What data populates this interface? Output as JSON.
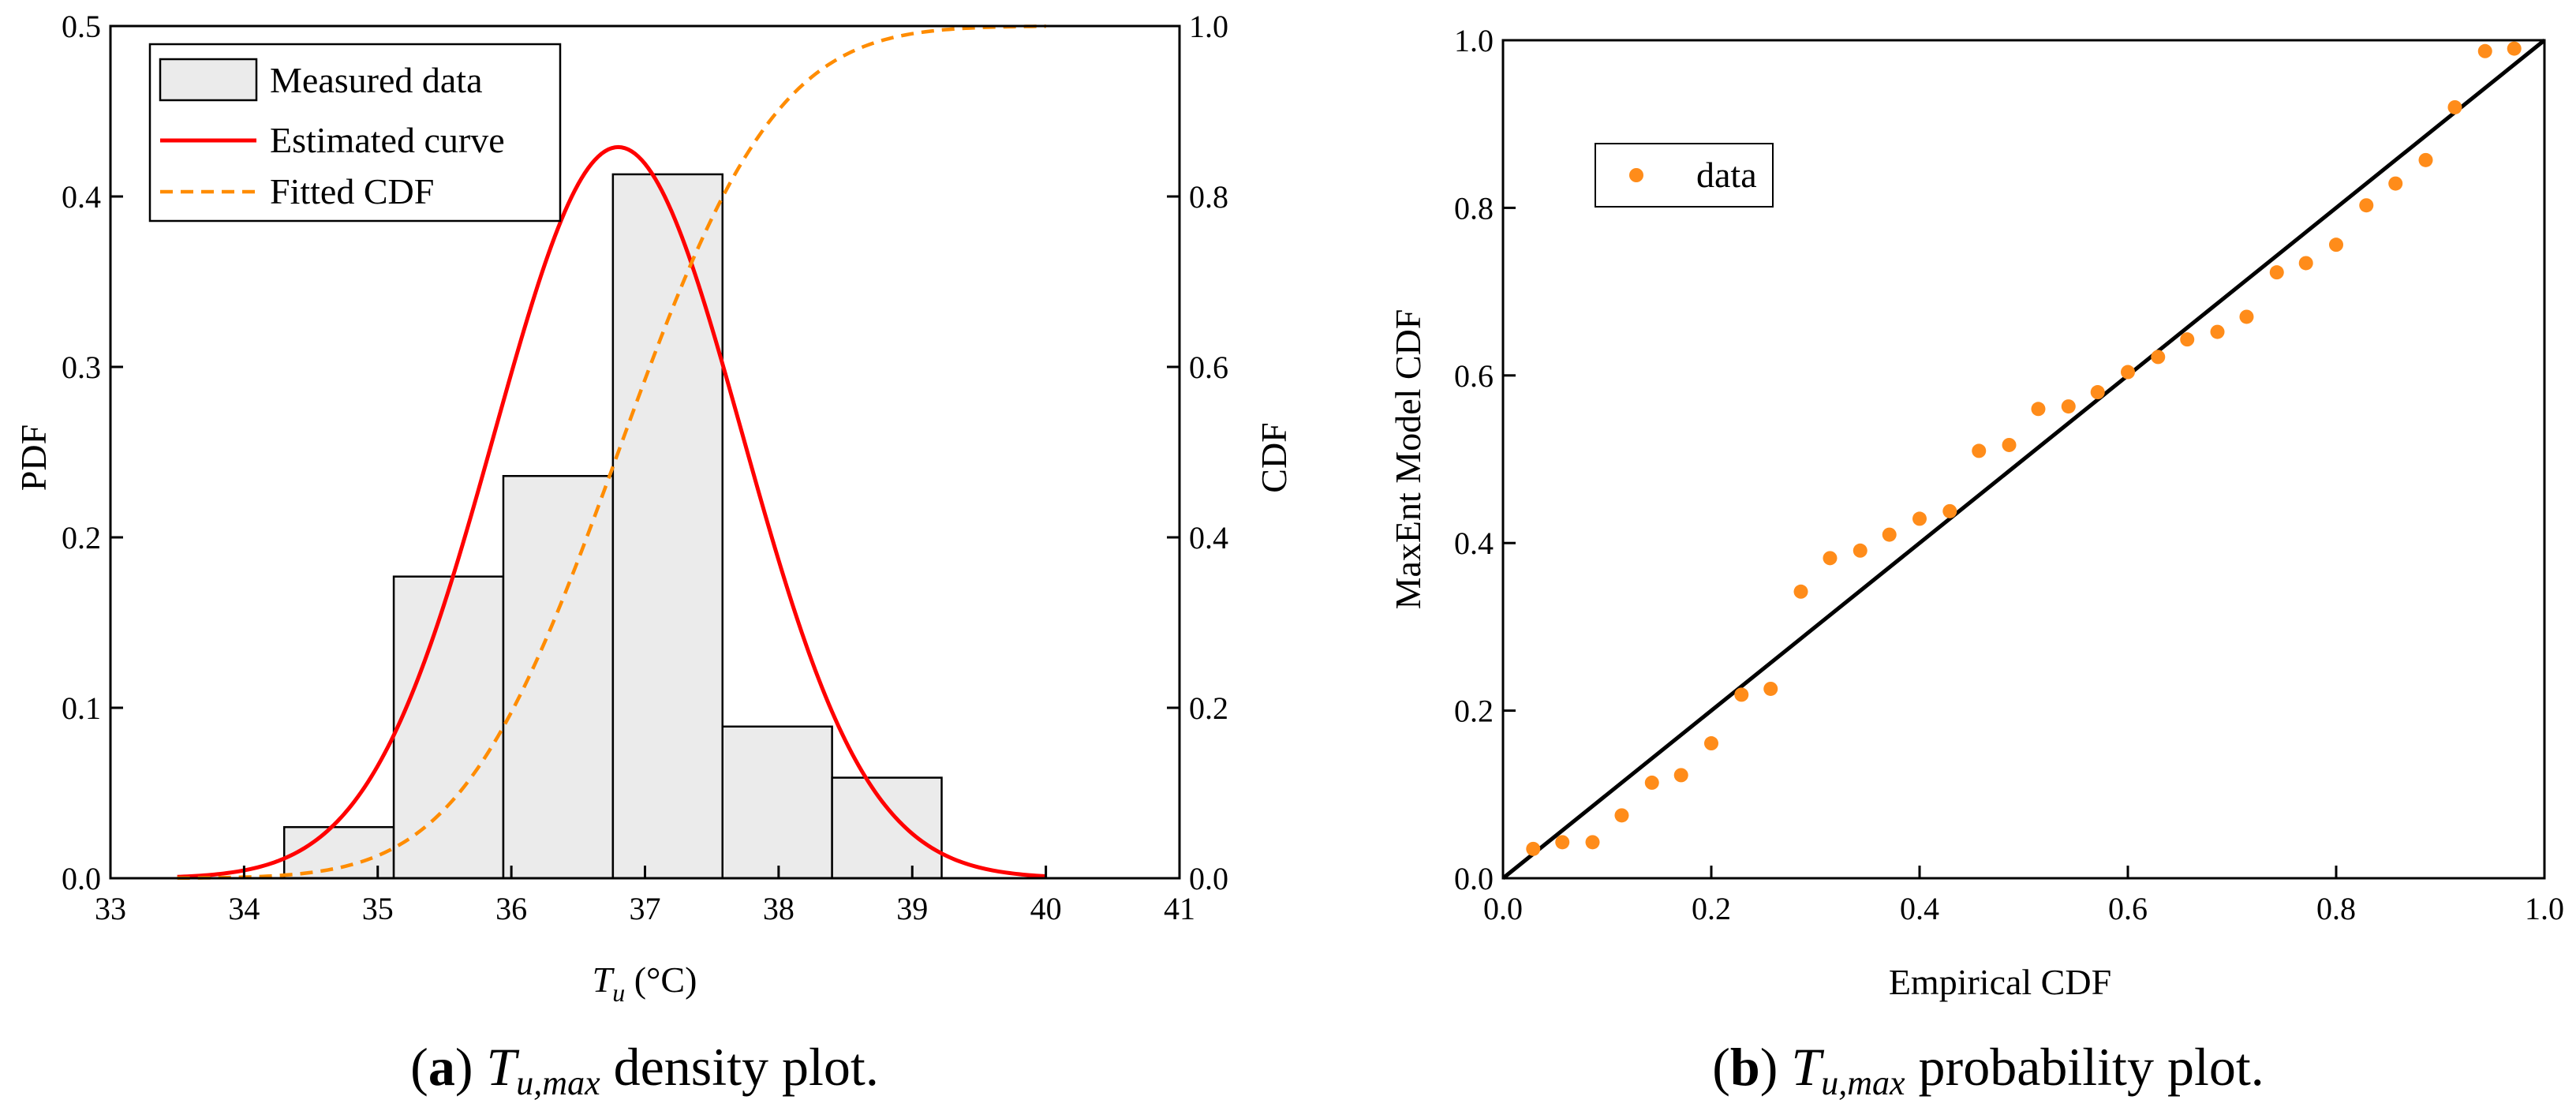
{
  "colors": {
    "bar_fill": "#ebebeb",
    "pdf_curve": "#ff0000",
    "cdf_curve": "#ff8c00",
    "points": "#ff8c1a",
    "ref_line": "#000000"
  },
  "chart_data": [
    {
      "type": "bar",
      "panel": "a",
      "bins": [
        {
          "from": 34.3,
          "to": 35.12,
          "value": 0.03
        },
        {
          "from": 35.12,
          "to": 35.94,
          "value": 0.177
        },
        {
          "from": 35.94,
          "to": 36.76,
          "value": 0.236
        },
        {
          "from": 36.76,
          "to": 37.58,
          "value": 0.413
        },
        {
          "from": 37.58,
          "to": 38.4,
          "value": 0.089
        },
        {
          "from": 38.4,
          "to": 39.22,
          "value": 0.059
        }
      ],
      "pdf_curve": {
        "mean": 36.8,
        "std": 0.93,
        "x_range": [
          33.5,
          40.0
        ]
      },
      "cdf_curve": {
        "mean": 36.8,
        "std": 0.93,
        "x_range": [
          33.5,
          40.0
        ]
      },
      "legend": {
        "items": [
          "Measured data",
          "Estimated curve",
          "Fitted CDF"
        ],
        "position": "top-left"
      },
      "xlabel_symbol": "T",
      "xlabel_sub": "u",
      "xlabel_unit": " (°C)",
      "ylabel": "PDF",
      "y2label": "CDF",
      "xlim": [
        33,
        41
      ],
      "ylim": [
        0,
        0.5
      ],
      "y2lim": [
        0,
        1
      ],
      "xticks": [
        "33",
        "34",
        "35",
        "36",
        "37",
        "38",
        "39",
        "40",
        "41"
      ],
      "yticks": [
        "0.0",
        "0.1",
        "0.2",
        "0.3",
        "0.4",
        "0.5"
      ],
      "y2ticks": [
        "0.0",
        "0.2",
        "0.4",
        "0.6",
        "0.8",
        "1.0"
      ],
      "caption": {
        "label": "a",
        "symbol": "T",
        "sub": "u,max",
        "text": " density plot."
      }
    },
    {
      "type": "scatter",
      "panel": "b",
      "series": [
        {
          "name": "data",
          "x": [
            0.029,
            0.057,
            0.086,
            0.114,
            0.143,
            0.171,
            0.2,
            0.229,
            0.257,
            0.286,
            0.314,
            0.343,
            0.371,
            0.4,
            0.429,
            0.457,
            0.486,
            0.514,
            0.543,
            0.571,
            0.6,
            0.629,
            0.657,
            0.686,
            0.714,
            0.743,
            0.771,
            0.8,
            0.829,
            0.857,
            0.886,
            0.914,
            0.943,
            0.971
          ],
          "y": [
            0.035,
            0.043,
            0.043,
            0.075,
            0.114,
            0.123,
            0.161,
            0.219,
            0.226,
            0.342,
            0.382,
            0.391,
            0.41,
            0.429,
            0.438,
            0.51,
            0.517,
            0.56,
            0.563,
            0.58,
            0.604,
            0.622,
            0.643,
            0.652,
            0.67,
            0.723,
            0.734,
            0.756,
            0.803,
            0.829,
            0.857,
            0.92,
            0.987,
            0.99
          ]
        }
      ],
      "reference_line": {
        "from": [
          0,
          0
        ],
        "to": [
          1,
          1
        ]
      },
      "legend": {
        "items": [
          "data"
        ],
        "position": "top-left"
      },
      "xlabel": "Empirical CDF",
      "ylabel": "MaxEnt Model CDF",
      "xlim": [
        0,
        1
      ],
      "ylim": [
        0,
        1
      ],
      "xticks": [
        "0.0",
        "0.2",
        "0.4",
        "0.6",
        "0.8",
        "1.0"
      ],
      "yticks": [
        "0.0",
        "0.2",
        "0.4",
        "0.6",
        "0.8",
        "1.0"
      ],
      "caption": {
        "label": "b",
        "symbol": "T",
        "sub": "u,max",
        "text": " probability plot."
      }
    }
  ]
}
